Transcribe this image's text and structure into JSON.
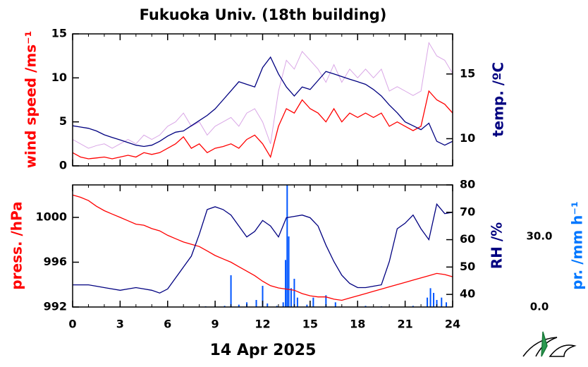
{
  "chart_data": [
    {
      "type": "line",
      "title": "Fukuoka Univ. (18th building)",
      "ylabel": "wind speed /ms⁻¹",
      "y2label": "temp. /ºC",
      "xlim": [
        0,
        24
      ],
      "x": [
        0,
        0.5,
        1,
        1.5,
        2,
        2.5,
        3,
        3.5,
        4,
        4.5,
        5,
        5.5,
        6,
        6.5,
        7,
        7.5,
        8,
        8.5,
        9,
        9.5,
        10,
        10.5,
        11,
        11.5,
        12,
        12.5,
        13,
        13.5,
        14,
        14.5,
        15,
        15.5,
        16,
        16.5,
        17,
        17.5,
        18,
        18.5,
        19,
        19.5,
        20,
        20.5,
        21,
        21.5,
        22,
        22.5,
        23,
        23.5,
        24
      ],
      "ylim": [
        0,
        15
      ],
      "yticks": [
        0,
        5,
        10,
        15
      ],
      "y2lim": [
        7.9,
        18.1
      ],
      "y2ticks": [
        10,
        15
      ],
      "series": [
        {
          "color": "#cc88dd",
          "values": [
            3,
            2.5,
            2,
            2.3,
            2.5,
            2,
            2.5,
            3,
            2.5,
            3.5,
            3,
            3.5,
            4.5,
            5,
            6,
            4.5,
            5,
            3.5,
            4.5,
            5,
            5.5,
            4.5,
            6,
            6.5,
            5,
            2.5,
            8.5,
            12,
            11,
            13,
            12,
            11,
            9.5,
            11.5,
            9.5,
            11,
            10,
            11,
            10,
            11,
            8.5,
            9,
            8.5,
            8,
            8.5,
            14,
            12.5,
            12,
            10.5
          ]
        },
        {
          "color": "#ff0000",
          "values": [
            1.5,
            1.0,
            0.8,
            0.9,
            1.0,
            0.8,
            1.0,
            1.2,
            1.0,
            1.5,
            1.3,
            1.5,
            2.0,
            2.5,
            3.3,
            2.0,
            2.5,
            1.5,
            2.0,
            2.2,
            2.5,
            2.0,
            3.0,
            3.5,
            2.5,
            1.0,
            4.5,
            6.5,
            6.0,
            7.5,
            6.5,
            6.0,
            5.0,
            6.5,
            5.0,
            6.0,
            5.5,
            6.0,
            5.5,
            6.0,
            4.5,
            5.0,
            4.5,
            4.0,
            4.5,
            8.5,
            7.5,
            7.0,
            6.0
          ]
        },
        {
          "color": "#000080",
          "axis": "y2",
          "values": [
            11.0,
            10.9,
            10.8,
            10.6,
            10.3,
            10.1,
            9.9,
            9.7,
            9.5,
            9.4,
            9.5,
            9.8,
            10.2,
            10.5,
            10.6,
            11.0,
            11.4,
            11.8,
            12.3,
            13.0,
            13.7,
            14.4,
            14.2,
            14.0,
            15.5,
            16.3,
            15.0,
            14.0,
            13.3,
            14.0,
            13.8,
            14.5,
            15.2,
            15.0,
            14.8,
            14.6,
            14.4,
            14.2,
            13.8,
            13.3,
            12.6,
            12.0,
            11.3,
            11.0,
            10.7,
            11.2,
            9.8,
            9.5,
            9.8
          ]
        }
      ]
    },
    {
      "type": "line",
      "xlabel": "14 Apr 2025",
      "ylabel": "press. /hPa",
      "y2label": "RH /%",
      "y3label": "pr. /mm h⁻¹",
      "xlim": [
        0,
        24
      ],
      "xticks": [
        0,
        3,
        6,
        9,
        12,
        15,
        18,
        21,
        24
      ],
      "x": [
        0,
        0.5,
        1,
        1.5,
        2,
        2.5,
        3,
        3.5,
        4,
        4.5,
        5,
        5.5,
        6,
        6.5,
        7,
        7.5,
        8,
        8.5,
        9,
        9.5,
        10,
        10.5,
        11,
        11.5,
        12,
        12.5,
        13,
        13.5,
        14,
        14.5,
        15,
        15.5,
        16,
        16.5,
        17,
        17.5,
        18,
        18.5,
        19,
        19.5,
        20,
        20.5,
        21,
        21.5,
        22,
        22.5,
        23,
        23.5,
        24
      ],
      "ylim": [
        992,
        1002.9
      ],
      "yticks": [
        992,
        996,
        1000
      ],
      "y2lim": [
        35.4,
        80
      ],
      "y2ticks": [
        40,
        50,
        60,
        70,
        80
      ],
      "y3lim": [
        0,
        51.9
      ],
      "y3ticks": [
        {
          "value": 0,
          "label": "0.0"
        },
        {
          "value": 30,
          "label": "30.0"
        }
      ],
      "series": [
        {
          "type": "bar",
          "color": "#0055ff",
          "axis": "y3",
          "x": [
            8.4,
            9.0,
            9.6,
            10.0,
            10.5,
            11.0,
            11.6,
            12.0,
            12.3,
            12.9,
            13.3,
            13.45,
            13.55,
            13.65,
            13.8,
            14.0,
            14.2,
            14.8,
            15.2,
            16.0,
            16.6,
            18.5,
            19.5,
            21.5,
            22.4,
            22.6,
            22.8,
            23.0,
            23.3,
            23.6
          ],
          "values": [
            0.3,
            0.4,
            0.5,
            13.5,
            1,
            2,
            3,
            9,
            1.5,
            0.5,
            2,
            20,
            52,
            30,
            8,
            12,
            4,
            1,
            4,
            5,
            2,
            0.5,
            0.3,
            0.5,
            4,
            8,
            6,
            3,
            4,
            2
          ]
        },
        {
          "color": "#ff0000",
          "values": [
            1002.0,
            1001.8,
            1001.5,
            1001.0,
            1000.6,
            1000.3,
            1000.0,
            999.7,
            999.4,
            999.3,
            999.0,
            998.8,
            998.4,
            998.1,
            997.8,
            997.6,
            997.4,
            997.0,
            996.6,
            996.3,
            996.0,
            995.6,
            995.2,
            994.8,
            994.3,
            993.9,
            993.7,
            993.6,
            993.5,
            993.2,
            993.0,
            992.9,
            992.9,
            992.7,
            992.6,
            992.8,
            993.0,
            993.2,
            993.4,
            993.6,
            993.8,
            994.0,
            994.2,
            994.4,
            994.6,
            994.8,
            995.0,
            994.9,
            994.7
          ]
        },
        {
          "color": "#000080",
          "axis": "y2",
          "values": [
            43.5,
            43.5,
            43.5,
            43,
            42.5,
            42,
            41.5,
            42,
            42.5,
            42,
            41.5,
            40.5,
            42,
            46,
            50,
            54,
            62,
            71,
            72,
            71,
            69,
            65,
            61,
            63,
            67,
            65,
            61,
            68,
            68.5,
            69,
            68,
            65,
            58,
            52,
            47,
            44,
            42.5,
            42.5,
            43,
            43.5,
            52,
            64,
            66,
            69,
            64,
            60,
            73,
            69.5,
            70
          ]
        }
      ]
    }
  ]
}
